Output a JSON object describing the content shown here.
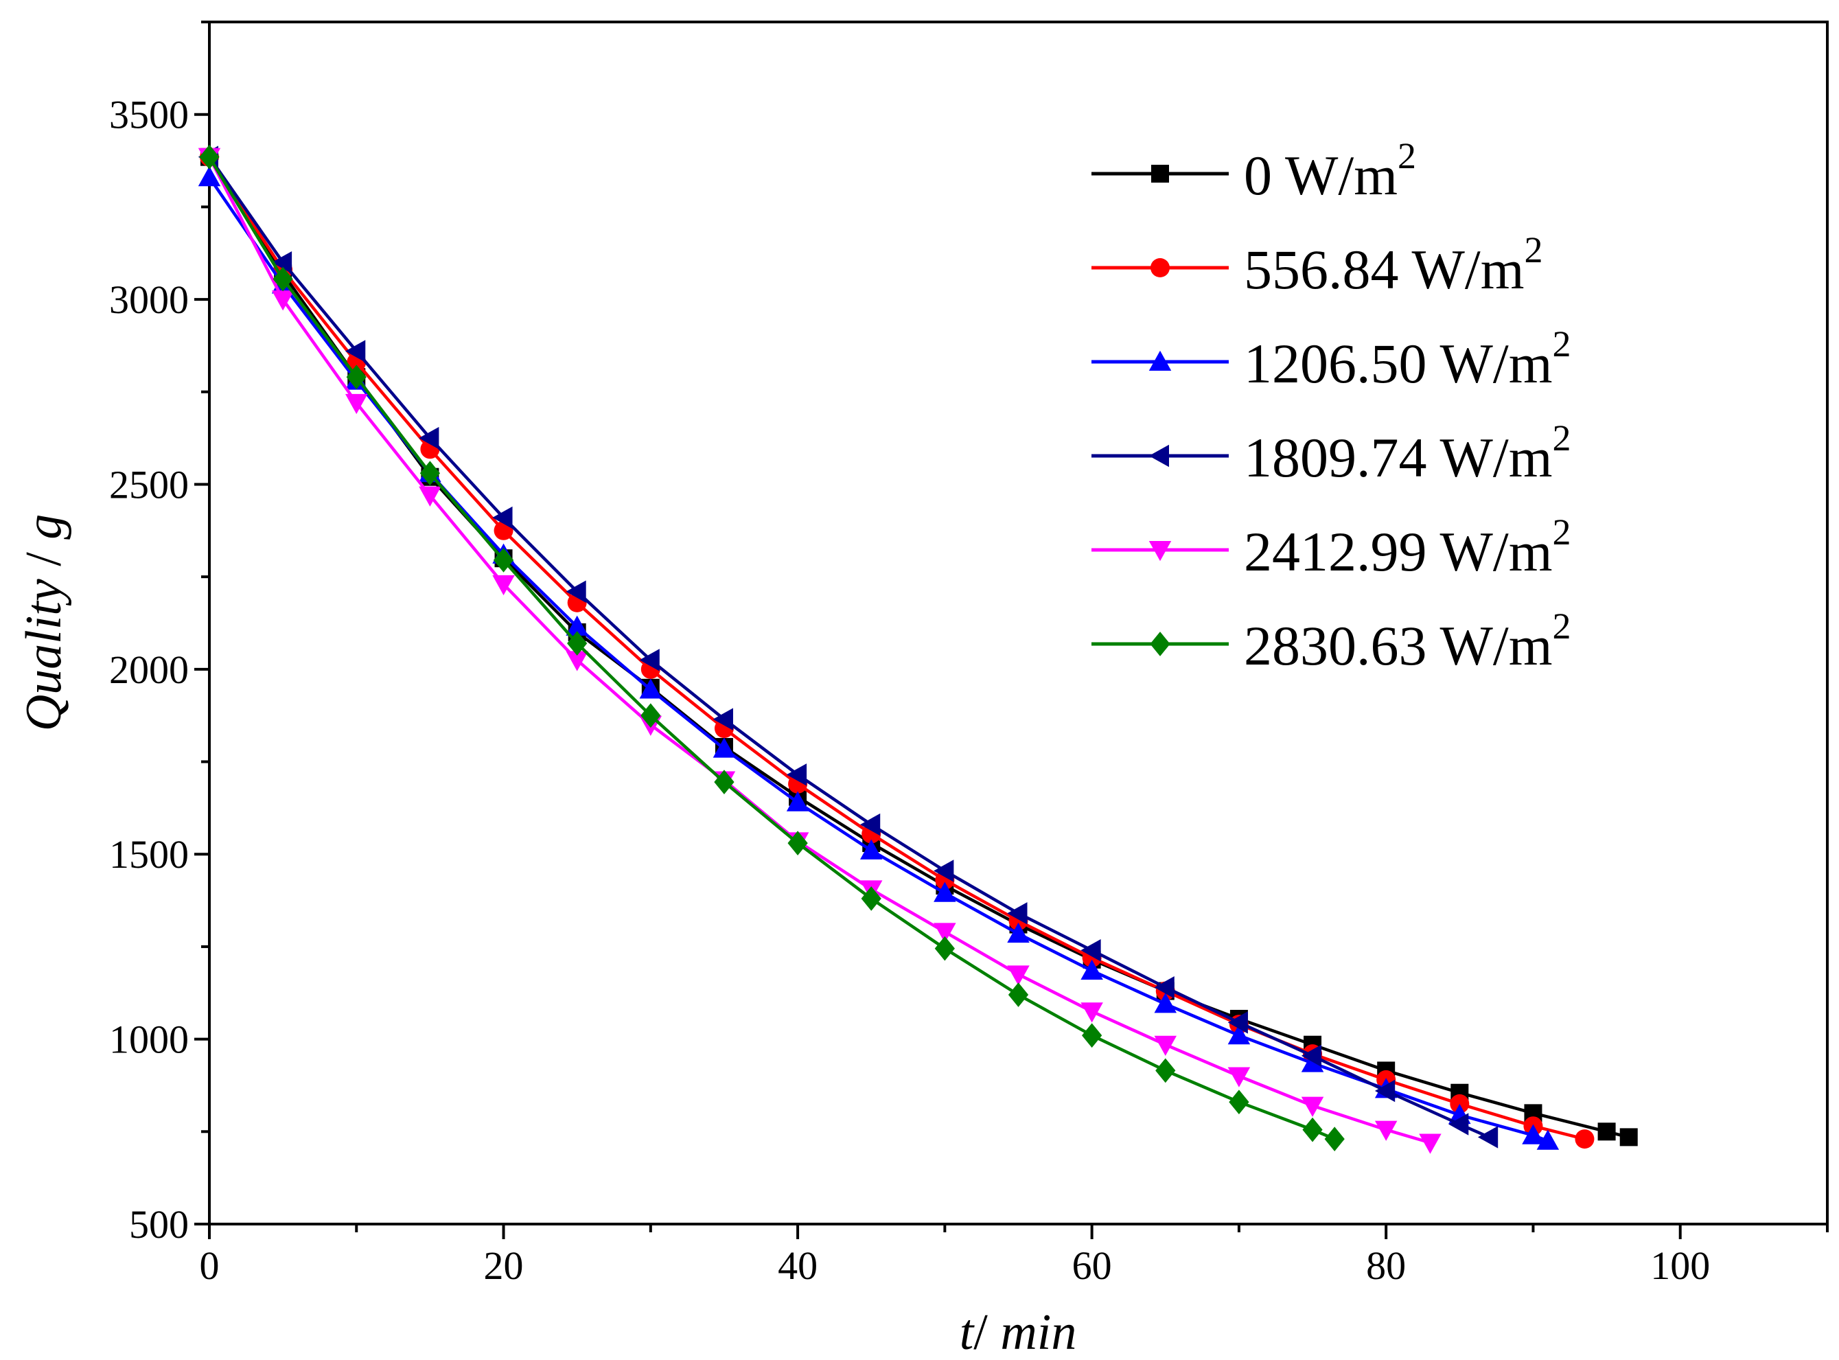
{
  "chart_data": {
    "type": "line",
    "title": "",
    "xlabel": "t/ min",
    "xlabel_parts": [
      "t",
      "/ ",
      "min"
    ],
    "ylabel": "Quality / g",
    "ylabel_parts": [
      "Quality",
      " / ",
      "g"
    ],
    "xlim": [
      0,
      110
    ],
    "ylim": [
      500,
      3750
    ],
    "xticks": [
      0,
      20,
      40,
      60,
      80,
      100
    ],
    "yticks": [
      500,
      1000,
      1500,
      2000,
      2500,
      3000,
      3500
    ],
    "x_minor_step": 10,
    "y_minor_step": 250,
    "grid": false,
    "legend_position": "top-right",
    "series": [
      {
        "name": "0 W/m2",
        "label_main": "0 W/m",
        "label_sup": "2",
        "color": "#000000",
        "marker": "square",
        "x": [
          0,
          5,
          10,
          15,
          20,
          25,
          30,
          35,
          40,
          45,
          50,
          55,
          60,
          65,
          70,
          75,
          80,
          85,
          90,
          95,
          96.5
        ],
        "y": [
          3385,
          3070,
          2790,
          2520,
          2300,
          2100,
          1950,
          1790,
          1655,
          1530,
          1415,
          1310,
          1215,
          1130,
          1055,
          985,
          915,
          855,
          800,
          750,
          735
        ]
      },
      {
        "name": "556.84 W/m2",
        "label_main": "556.84 W/m",
        "label_sup": "2",
        "color": "#ff0000",
        "marker": "circle",
        "x": [
          0,
          5,
          10,
          15,
          20,
          25,
          30,
          35,
          40,
          45,
          50,
          55,
          60,
          65,
          70,
          75,
          80,
          85,
          90,
          93.5
        ],
        "y": [
          3385,
          3080,
          2830,
          2595,
          2375,
          2180,
          2000,
          1840,
          1690,
          1555,
          1430,
          1320,
          1220,
          1130,
          1040,
          960,
          890,
          825,
          765,
          730
        ]
      },
      {
        "name": "1206.50 W/m2",
        "label_main": "1206.50 W/m",
        "label_sup": "2",
        "color": "#0000ff",
        "marker": "triangle-up",
        "x": [
          0,
          5,
          10,
          15,
          20,
          25,
          30,
          35,
          40,
          45,
          50,
          55,
          60,
          65,
          70,
          75,
          80,
          85,
          90,
          91
        ],
        "y": [
          3330,
          3040,
          2780,
          2530,
          2310,
          2115,
          1945,
          1785,
          1640,
          1510,
          1395,
          1285,
          1185,
          1095,
          1010,
          935,
          865,
          795,
          740,
          725
        ]
      },
      {
        "name": "1809.74 W/m2",
        "label_main": "1809.74 W/m",
        "label_sup": "2",
        "color": "#00008b",
        "marker": "triangle-left",
        "x": [
          0,
          5,
          10,
          15,
          20,
          25,
          30,
          35,
          40,
          45,
          50,
          55,
          60,
          65,
          70,
          75,
          80,
          85,
          87
        ],
        "y": [
          3385,
          3100,
          2860,
          2625,
          2410,
          2210,
          2025,
          1865,
          1715,
          1580,
          1455,
          1340,
          1240,
          1140,
          1045,
          955,
          860,
          770,
          735
        ]
      },
      {
        "name": "2412.99 W/m2",
        "label_main": "2412.99 W/m",
        "label_sup": "2",
        "color": "#ff00ff",
        "marker": "triangle-down",
        "x": [
          0,
          5,
          10,
          15,
          20,
          25,
          30,
          35,
          40,
          45,
          50,
          55,
          60,
          65,
          70,
          75,
          80,
          83
        ],
        "y": [
          3385,
          3000,
          2720,
          2470,
          2230,
          2025,
          1850,
          1700,
          1535,
          1405,
          1290,
          1175,
          1075,
          985,
          900,
          820,
          755,
          720
        ]
      },
      {
        "name": "2830.63 W/m2",
        "label_main": "2830.63 W/m",
        "label_sup": "2",
        "color": "#008000",
        "marker": "diamond",
        "x": [
          0,
          5,
          10,
          15,
          20,
          25,
          30,
          35,
          40,
          45,
          50,
          55,
          60,
          65,
          70,
          75,
          76.5
        ],
        "y": [
          3385,
          3055,
          2790,
          2530,
          2295,
          2070,
          1875,
          1695,
          1530,
          1380,
          1245,
          1120,
          1010,
          915,
          830,
          755,
          730
        ]
      }
    ]
  }
}
